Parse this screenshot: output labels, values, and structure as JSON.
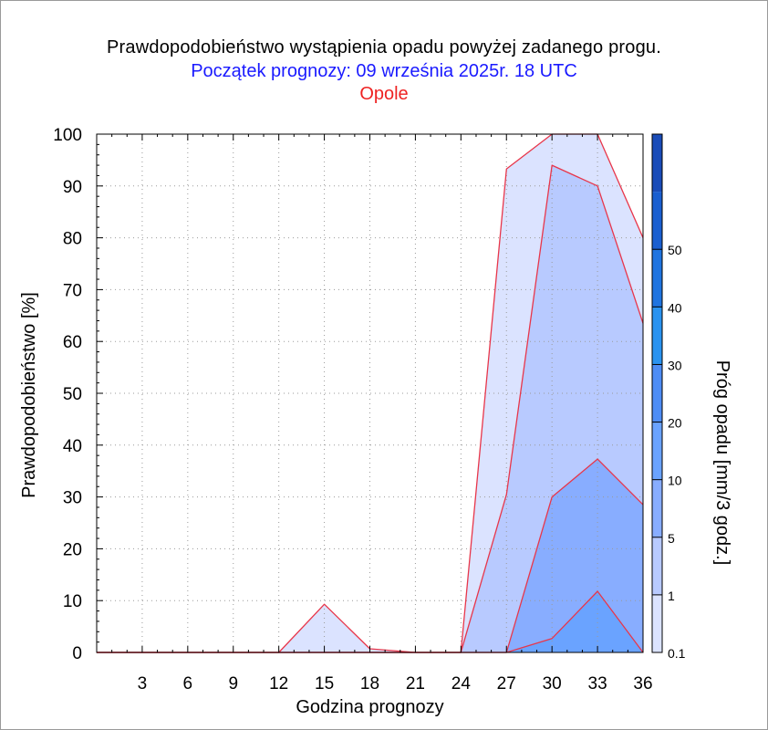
{
  "title": "Prawdopodobieństwo wystąpienia opadu powyżej zadanego progu.",
  "subtitle": "Początek prognozy: 09 września 2025r. 18 UTC",
  "location": "Opole",
  "colors": {
    "title": "#000000",
    "subtitle": "#1a1aff",
    "location": "#ee2222",
    "contour_line": "#e8364a"
  },
  "chart_data": {
    "type": "area",
    "xlabel": "Godzina prognozy",
    "ylabel": "Prawdopodobieństwo [%]",
    "xlim": [
      0,
      36
    ],
    "ylim": [
      0,
      100
    ],
    "x_ticks": [
      "3",
      "6",
      "9",
      "12",
      "15",
      "18",
      "21",
      "24",
      "27",
      "30",
      "33",
      "36"
    ],
    "y_ticks": [
      "0",
      "10",
      "20",
      "30",
      "40",
      "50",
      "60",
      "70",
      "80",
      "90",
      "100"
    ],
    "grid": true,
    "x": [
      0,
      3,
      6,
      9,
      12,
      15,
      18,
      21,
      24,
      27,
      30,
      33,
      36
    ],
    "series": [
      {
        "name": "0.1",
        "color": "#dbe3ff",
        "values": [
          0,
          0,
          0,
          0,
          0,
          9.3,
          0.7,
          0,
          0,
          93.3,
          100,
          100,
          80
        ]
      },
      {
        "name": "1",
        "color": "#b8caff",
        "values": [
          0,
          0,
          0,
          0,
          0,
          0,
          0,
          0,
          0,
          30.5,
          94,
          90,
          63.5
        ]
      },
      {
        "name": "5",
        "color": "#88adff",
        "values": [
          0,
          0,
          0,
          0,
          0,
          0,
          0,
          0,
          0,
          0,
          30,
          37.3,
          28.5
        ]
      },
      {
        "name": "10",
        "color": "#6aa3ff",
        "values": [
          0,
          0,
          0,
          0,
          0,
          0,
          0,
          0,
          0,
          0,
          2.7,
          11.8,
          0
        ]
      }
    ],
    "colorbar": {
      "label": "Próg opadu [mm/3 godz.]",
      "tick_labels": [
        "0.1",
        "1",
        "5",
        "10",
        "20",
        "30",
        "40",
        "50"
      ],
      "colors": [
        "#dbe3ff",
        "#b8caff",
        "#88adff",
        "#6aa3ff",
        "#4e8df5",
        "#2a93f0",
        "#1f74e0",
        "#1a5fd0",
        "#1a4cb8"
      ]
    }
  }
}
